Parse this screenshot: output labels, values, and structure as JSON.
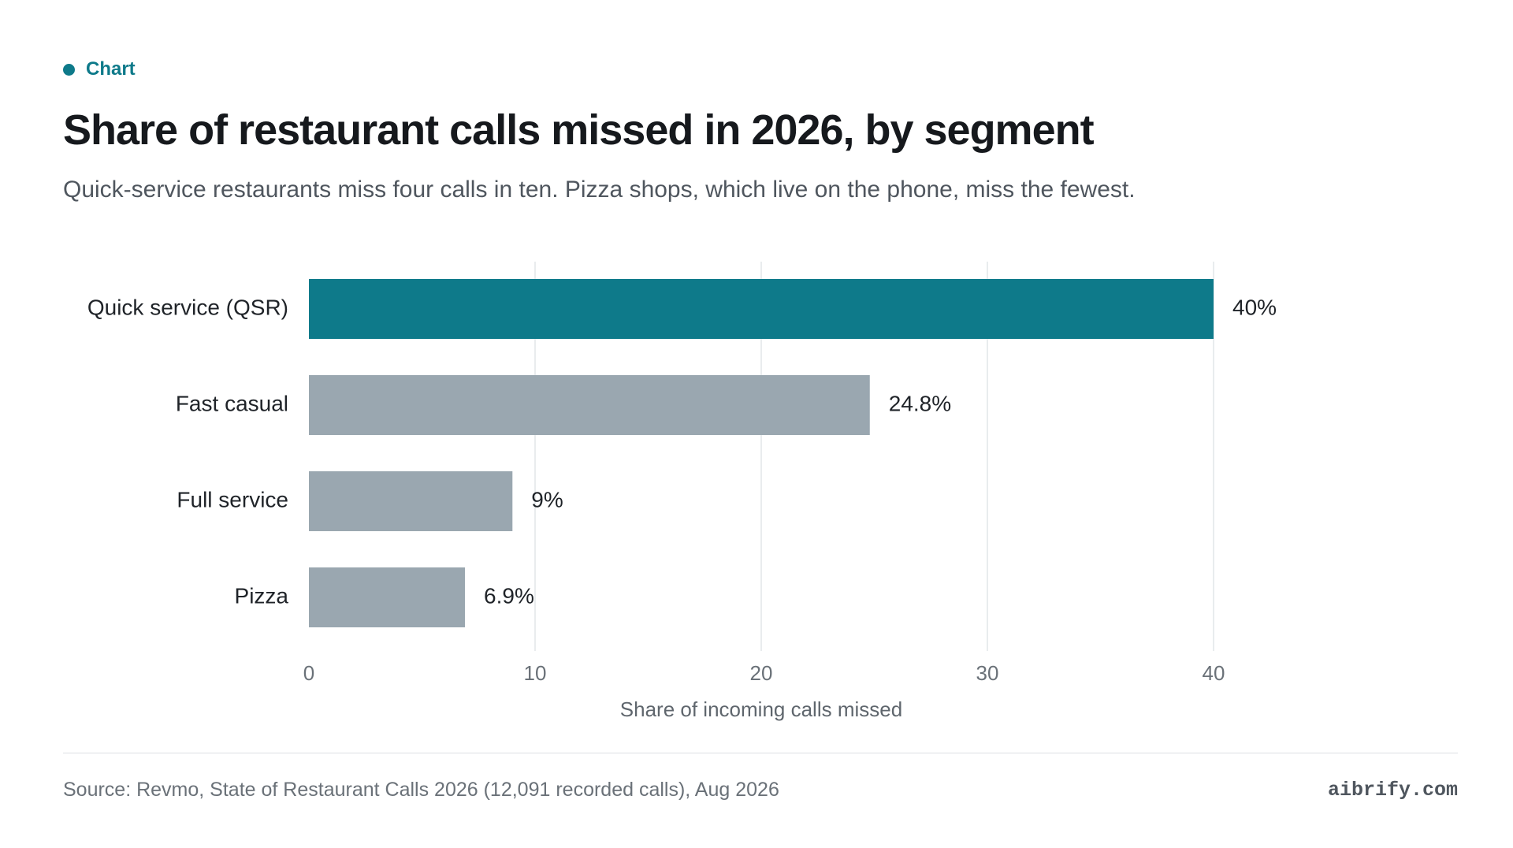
{
  "kicker": "Chart",
  "title": "Share of restaurant calls missed in 2026, by segment",
  "subtitle": "Quick-service restaurants miss four calls in ten. Pizza shops, which live on the phone, miss the fewest.",
  "source": "Source: Revmo, State of Restaurant Calls 2026 (12,091 recorded calls), Aug 2026",
  "brand": "aibrify.com",
  "colors": {
    "accent": "#0e7a8a",
    "bar_default": "#9aa7b0",
    "bar_highlight": "#0e7a8a",
    "grid": "#e2e5e8",
    "text": "#1f2328",
    "muted": "#5f666d"
  },
  "chart_data": {
    "type": "bar",
    "orientation": "horizontal",
    "categories": [
      "Quick service (QSR)",
      "Fast casual",
      "Full service",
      "Pizza"
    ],
    "values": [
      40,
      24.8,
      9,
      6.9
    ],
    "value_labels": [
      "40%",
      "24.8%",
      "9%",
      "6.9%"
    ],
    "highlight_index": 0,
    "xlabel": "Share of incoming calls missed",
    "xlim": [
      0,
      40
    ],
    "xticks": [
      0,
      10,
      20,
      30,
      40
    ],
    "grid": true
  }
}
